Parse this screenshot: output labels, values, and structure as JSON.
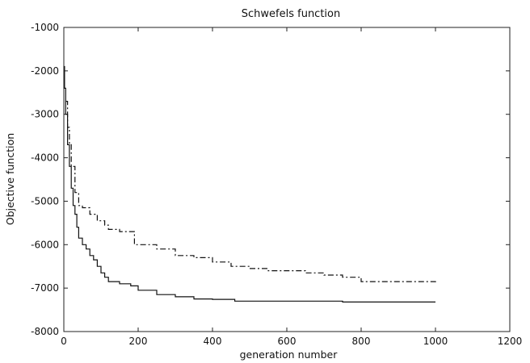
{
  "chart_data": {
    "type": "line",
    "title": "Schwefels function",
    "xlabel": "generation number",
    "ylabel": "Objective function",
    "xlim": [
      0,
      1200
    ],
    "ylim": [
      -8000,
      -1000
    ],
    "xticks": [
      0,
      200,
      400,
      600,
      800,
      1000,
      1200
    ],
    "yticks": [
      -8000,
      -7000,
      -6000,
      -5000,
      -4000,
      -3000,
      -2000,
      -1000
    ],
    "xtick_labels": [
      "0",
      "200",
      "400",
      "600",
      "800",
      "1000",
      "1200"
    ],
    "ytick_labels": [
      "-8000",
      "-7000",
      "-6000",
      "-5000",
      "-4000",
      "-3000",
      "-2000",
      "-1000"
    ],
    "grid": false,
    "legend": "none",
    "series": [
      {
        "style": "solid",
        "color": "#111111",
        "x": [
          0,
          2,
          5,
          10,
          15,
          20,
          25,
          30,
          35,
          40,
          50,
          60,
          70,
          80,
          90,
          100,
          110,
          120,
          150,
          180,
          200,
          250,
          300,
          350,
          400,
          460,
          500,
          600,
          700,
          750,
          800,
          900,
          1000
        ],
        "y": [
          -1900,
          -2400,
          -3000,
          -3700,
          -4200,
          -4700,
          -5100,
          -5300,
          -5600,
          -5850,
          -6000,
          -6100,
          -6250,
          -6350,
          -6500,
          -6650,
          -6750,
          -6850,
          -6900,
          -6950,
          -7050,
          -7150,
          -7200,
          -7250,
          -7260,
          -7300,
          -7300,
          -7300,
          -7300,
          -7320,
          -7320,
          -7320,
          -7320
        ]
      },
      {
        "style": "dash-dot",
        "color": "#111111",
        "x": [
          5,
          10,
          15,
          20,
          30,
          40,
          50,
          60,
          70,
          90,
          110,
          120,
          150,
          180,
          190,
          200,
          250,
          300,
          350,
          400,
          450,
          500,
          550,
          600,
          650,
          700,
          750,
          800,
          900,
          1000
        ],
        "y": [
          -2700,
          -3300,
          -3700,
          -4200,
          -4800,
          -5100,
          -5150,
          -5150,
          -5300,
          -5450,
          -5550,
          -5650,
          -5700,
          -5700,
          -6000,
          -6000,
          -6100,
          -6250,
          -6300,
          -6400,
          -6500,
          -6550,
          -6600,
          -6600,
          -6650,
          -6700,
          -6750,
          -6850,
          -6850,
          -6880
        ]
      }
    ]
  }
}
